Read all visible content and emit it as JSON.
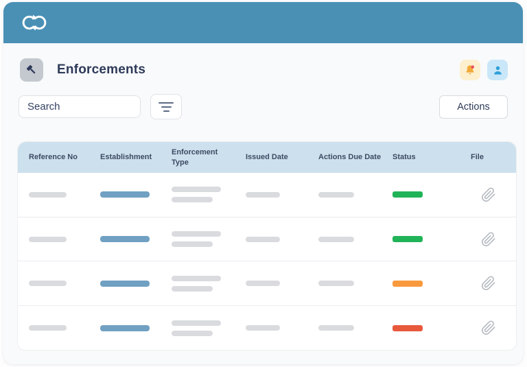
{
  "header": {
    "title": "Enforcements",
    "logo_icon": "infinity-loop-arrows",
    "title_icon": "gavel-icon",
    "notification_icon": "bell-with-badge",
    "profile_icon": "person"
  },
  "toolbar": {
    "search_placeholder": "Search",
    "filter_icon": "filter-lines",
    "actions_label": "Actions"
  },
  "table": {
    "columns": [
      "Reference No",
      "Establishment",
      "Enforcement Type",
      "Issued Date",
      "Actions Due Date",
      "Status",
      "File"
    ],
    "rows": [
      {
        "reference_no": "placeholder",
        "establishment": "placeholder",
        "enforcement_type": "placeholder",
        "issued_date": "placeholder",
        "actions_due_date": "placeholder",
        "status": "green",
        "status_color": "#21b358",
        "file_icon": "paperclip"
      },
      {
        "reference_no": "placeholder",
        "establishment": "placeholder",
        "enforcement_type": "placeholder",
        "issued_date": "placeholder",
        "actions_due_date": "placeholder",
        "status": "green",
        "status_color": "#21b358",
        "file_icon": "paperclip"
      },
      {
        "reference_no": "placeholder",
        "establishment": "placeholder",
        "enforcement_type": "placeholder",
        "issued_date": "placeholder",
        "actions_due_date": "placeholder",
        "status": "orange",
        "status_color": "#f9993d",
        "file_icon": "paperclip"
      },
      {
        "reference_no": "placeholder",
        "establishment": "placeholder",
        "enforcement_type": "placeholder",
        "issued_date": "placeholder",
        "actions_due_date": "placeholder",
        "status": "red",
        "status_color": "#e8593c",
        "file_icon": "paperclip"
      }
    ]
  },
  "colors": {
    "header_bar": "#4a90b5",
    "table_header_bg": "#cde0ed",
    "placeholder_gray": "#d9dbdf",
    "establishment_bar": "#70a0c2",
    "status_green": "#21b358",
    "status_orange": "#f9993d",
    "status_red": "#e8593c",
    "bell_chip_bg": "#fdf0cf",
    "bell_icon": "#f2a93b",
    "bell_badge": "#e94f5e",
    "user_chip_bg": "#c9e7f8",
    "user_icon": "#2d9fd8",
    "title_text": "#2e3a59"
  }
}
